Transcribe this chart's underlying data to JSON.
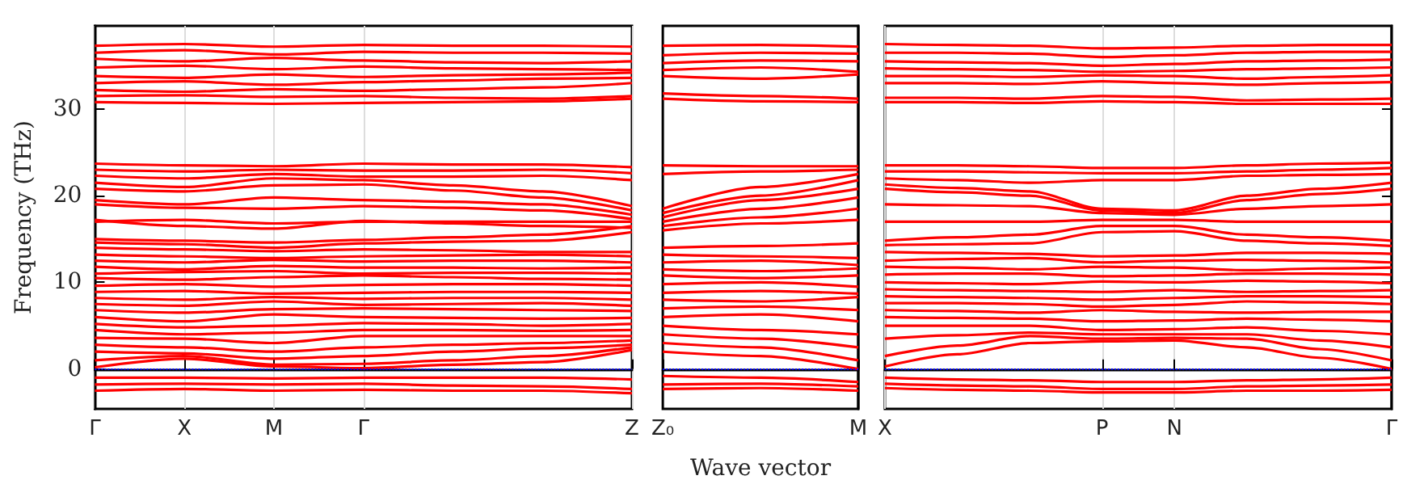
{
  "chart_data": [
    {
      "type": "line",
      "ylabel": "Frequency (THz)",
      "color": "#ff0000",
      "grid": "x",
      "categories": [
        "Γ",
        "X",
        "M",
        "Γ",
        null,
        null,
        "Z"
      ],
      "ylim": [
        -4.6,
        39.6
      ],
      "yticks": [
        0,
        10,
        20,
        30
      ],
      "ref_lines": [
        {
          "axis": "y",
          "value": 0,
          "color": "#0000ff",
          "line_style": "dotted"
        }
      ],
      "series": [
        {
          "values": [
            37.3,
            37.5,
            37.2,
            37.4,
            37.3,
            37.3,
            37.2
          ]
        },
        {
          "values": [
            36.5,
            36.8,
            36.3,
            36.6,
            36.5,
            36.5,
            36.4
          ]
        },
        {
          "values": [
            35.8,
            35.5,
            35.9,
            35.6,
            35.4,
            35.3,
            35.5
          ]
        },
        {
          "values": [
            34.8,
            35.0,
            34.6,
            34.9,
            34.7,
            34.6,
            34.5
          ]
        },
        {
          "values": [
            33.8,
            33.6,
            34.0,
            33.7,
            33.9,
            34.0,
            34.2
          ]
        },
        {
          "values": [
            33.0,
            33.2,
            32.8,
            33.1,
            33.3,
            33.5,
            33.6
          ]
        },
        {
          "values": [
            32.2,
            32.0,
            32.3,
            32.1,
            32.3,
            32.5,
            33.0
          ]
        },
        {
          "values": [
            31.5,
            31.6,
            31.4,
            31.5,
            31.3,
            31.2,
            31.5
          ]
        },
        {
          "values": [
            30.8,
            30.7,
            30.6,
            30.7,
            30.8,
            30.9,
            31.2
          ]
        },
        {
          "values": [
            23.7,
            23.5,
            23.4,
            23.7,
            23.6,
            23.6,
            23.3
          ]
        },
        {
          "values": [
            23.0,
            22.8,
            23.0,
            22.9,
            22.9,
            23.0,
            22.6
          ]
        },
        {
          "values": [
            22.3,
            22.0,
            22.5,
            22.2,
            22.2,
            22.3,
            21.8
          ]
        },
        {
          "values": [
            21.5,
            21.0,
            22.0,
            21.8,
            21.2,
            20.5,
            18.8
          ]
        },
        {
          "values": [
            20.8,
            20.5,
            21.2,
            21.3,
            20.6,
            19.8,
            18.3
          ]
        },
        {
          "values": [
            19.5,
            19.0,
            19.8,
            19.5,
            19.3,
            19.0,
            17.8
          ]
        },
        {
          "values": [
            19.0,
            18.6,
            18.5,
            18.8,
            18.6,
            18.3,
            17.3
          ]
        },
        {
          "values": [
            17.0,
            17.2,
            16.8,
            17.0,
            17.0,
            17.0,
            17.0
          ]
        },
        {
          "values": [
            17.2,
            16.5,
            16.2,
            17.1,
            16.8,
            16.5,
            16.3
          ]
        },
        {
          "values": [
            15.0,
            14.8,
            14.6,
            14.9,
            15.2,
            15.5,
            16.5
          ]
        },
        {
          "values": [
            14.6,
            14.4,
            14.0,
            14.5,
            14.7,
            14.8,
            15.8
          ]
        },
        {
          "values": [
            14.0,
            13.8,
            13.6,
            13.8,
            13.7,
            13.5,
            13.5
          ]
        },
        {
          "values": [
            13.2,
            13.0,
            12.8,
            13.0,
            13.1,
            13.2,
            13.0
          ]
        },
        {
          "values": [
            12.5,
            12.3,
            12.6,
            12.4,
            12.5,
            12.5,
            12.3
          ]
        },
        {
          "values": [
            11.8,
            11.5,
            11.9,
            11.7,
            11.7,
            11.6,
            11.7
          ]
        },
        {
          "values": [
            11.0,
            11.2,
            11.3,
            11.0,
            11.1,
            11.1,
            11.0
          ]
        },
        {
          "values": [
            10.5,
            10.3,
            10.6,
            10.8,
            10.6,
            10.4,
            10.3
          ]
        },
        {
          "values": [
            9.6,
            9.8,
            9.5,
            9.7,
            9.8,
            9.8,
            9.6
          ]
        },
        {
          "values": [
            8.9,
            9.0,
            8.7,
            8.8,
            8.9,
            8.9,
            8.8
          ]
        },
        {
          "values": [
            8.2,
            8.0,
            8.3,
            8.1,
            8.2,
            8.2,
            8.0
          ]
        },
        {
          "values": [
            7.5,
            7.3,
            7.8,
            7.4,
            7.5,
            7.6,
            7.3
          ]
        },
        {
          "values": [
            6.8,
            6.5,
            6.9,
            7.0,
            6.9,
            6.8,
            6.7
          ]
        },
        {
          "values": [
            6.0,
            5.5,
            6.3,
            6.0,
            5.9,
            5.8,
            5.9
          ]
        },
        {
          "values": [
            5.2,
            4.8,
            5.0,
            5.3,
            5.2,
            5.0,
            5.2
          ]
        },
        {
          "values": [
            4.5,
            4.0,
            4.2,
            4.5,
            4.5,
            4.4,
            4.5
          ]
        },
        {
          "values": [
            3.6,
            3.5,
            3.0,
            3.8,
            3.8,
            3.8,
            3.8
          ]
        },
        {
          "values": [
            2.8,
            2.5,
            2.0,
            2.5,
            2.8,
            3.0,
            3.3
          ]
        },
        {
          "values": [
            2.0,
            1.8,
            1.2,
            1.5,
            2.0,
            2.4,
            2.8
          ]
        },
        {
          "values": [
            1.0,
            1.5,
            0.5,
            0.6,
            1.0,
            1.5,
            2.5
          ]
        },
        {
          "values": [
            0.2,
            1.2,
            0.3,
            0.1,
            0.5,
            0.8,
            2.2
          ]
        },
        {
          "values": [
            -1.0,
            -1.0,
            -1.1,
            -1.0,
            -1.0,
            -1.0,
            -1.2
          ]
        },
        {
          "values": [
            -1.8,
            -1.7,
            -1.8,
            -1.7,
            -1.9,
            -2.0,
            -2.3
          ]
        },
        {
          "values": [
            -2.5,
            -2.3,
            -2.5,
            -2.4,
            -2.5,
            -2.5,
            -2.8
          ]
        }
      ]
    },
    {
      "type": "line",
      "xlabel": "Wave vector",
      "color": "#ff0000",
      "tick_labels": "x",
      "categories": [
        "Z₀",
        null,
        "M"
      ],
      "ylim": [
        -4.6,
        39.6
      ],
      "ref_lines": [
        {
          "axis": "y",
          "value": 0,
          "color": "#0000ff",
          "line_style": "dotted"
        }
      ],
      "series": [
        {
          "values": [
            37.3,
            37.4,
            37.2
          ]
        },
        {
          "values": [
            36.2,
            36.5,
            36.4
          ]
        },
        {
          "values": [
            35.3,
            35.6,
            35.5
          ]
        },
        {
          "values": [
            34.5,
            34.8,
            34.3
          ]
        },
        {
          "values": [
            33.8,
            33.5,
            34.0
          ]
        },
        {
          "values": [
            31.8,
            31.5,
            31.2
          ]
        },
        {
          "values": [
            31.2,
            30.9,
            30.8
          ]
        },
        {
          "values": [
            23.5,
            23.4,
            23.4
          ]
        },
        {
          "values": [
            22.5,
            22.8,
            23.0
          ]
        },
        {
          "values": [
            18.5,
            21.0,
            22.5
          ]
        },
        {
          "values": [
            18.0,
            20.0,
            21.8
          ]
        },
        {
          "values": [
            17.5,
            19.5,
            20.8
          ]
        },
        {
          "values": [
            17.0,
            18.5,
            19.8
          ]
        },
        {
          "values": [
            16.5,
            17.5,
            18.5
          ]
        },
        {
          "values": [
            16.0,
            16.8,
            17.2
          ]
        },
        {
          "values": [
            14.0,
            14.2,
            14.5
          ]
        },
        {
          "values": [
            13.2,
            13.0,
            12.8
          ]
        },
        {
          "values": [
            12.3,
            12.5,
            12.0
          ]
        },
        {
          "values": [
            11.5,
            11.3,
            11.6
          ]
        },
        {
          "values": [
            10.8,
            10.5,
            10.8
          ]
        },
        {
          "values": [
            9.8,
            10.0,
            9.5
          ]
        },
        {
          "values": [
            8.8,
            9.0,
            8.7
          ]
        },
        {
          "values": [
            8.0,
            7.8,
            8.3
          ]
        },
        {
          "values": [
            7.0,
            7.2,
            6.8
          ]
        },
        {
          "values": [
            6.0,
            6.3,
            5.5
          ]
        },
        {
          "values": [
            5.0,
            4.5,
            4.0
          ]
        },
        {
          "values": [
            4.0,
            3.5,
            2.5
          ]
        },
        {
          "values": [
            3.0,
            2.5,
            1.0
          ]
        },
        {
          "values": [
            2.0,
            1.5,
            0.0
          ]
        },
        {
          "values": [
            -0.8,
            -1.0,
            -1.5
          ]
        },
        {
          "values": [
            -1.8,
            -1.7,
            -2.0
          ]
        },
        {
          "values": [
            -2.3,
            -2.2,
            -2.5
          ]
        }
      ]
    },
    {
      "type": "line",
      "color": "#ff0000",
      "tick_labels": "x",
      "grid": "x",
      "categories": [
        "X",
        null,
        null,
        "P",
        "N",
        null,
        null,
        "Γ"
      ],
      "ylim": [
        -4.6,
        39.6
      ],
      "yticks": [
        0,
        10,
        20,
        30
      ],
      "ref_lines": [
        {
          "axis": "y",
          "value": 0,
          "color": "#0000ff",
          "line_style": "dotted"
        }
      ],
      "series": [
        {
          "values": [
            37.5,
            37.4,
            37.3,
            37.0,
            37.1,
            37.3,
            37.4,
            37.4
          ]
        },
        {
          "values": [
            36.5,
            36.5,
            36.4,
            36.0,
            36.2,
            36.5,
            36.6,
            36.6
          ]
        },
        {
          "values": [
            35.5,
            35.4,
            35.3,
            35.0,
            35.2,
            35.5,
            35.6,
            35.7
          ]
        },
        {
          "values": [
            34.7,
            34.6,
            34.5,
            34.3,
            34.4,
            34.6,
            34.7,
            34.8
          ]
        },
        {
          "values": [
            33.8,
            33.8,
            33.7,
            33.9,
            33.8,
            33.5,
            33.7,
            33.9
          ]
        },
        {
          "values": [
            33.0,
            33.0,
            32.9,
            33.2,
            33.0,
            32.8,
            33.0,
            33.1
          ]
        },
        {
          "values": [
            31.3,
            31.3,
            31.2,
            31.5,
            31.4,
            31.0,
            31.1,
            31.2
          ]
        },
        {
          "values": [
            30.8,
            30.8,
            30.7,
            30.9,
            30.8,
            30.6,
            30.6,
            30.6
          ]
        },
        {
          "values": [
            23.5,
            23.5,
            23.4,
            23.2,
            23.2,
            23.5,
            23.7,
            23.8
          ]
        },
        {
          "values": [
            22.8,
            22.8,
            22.7,
            22.6,
            22.6,
            22.8,
            23.0,
            23.2
          ]
        },
        {
          "values": [
            22.0,
            21.8,
            21.5,
            21.8,
            21.8,
            22.3,
            22.4,
            22.5
          ]
        },
        {
          "values": [
            21.3,
            20.9,
            20.5,
            18.5,
            18.3,
            20.0,
            20.8,
            21.5
          ]
        },
        {
          "values": [
            20.8,
            20.4,
            20.0,
            18.3,
            18.0,
            19.5,
            20.2,
            20.8
          ]
        },
        {
          "values": [
            19.0,
            18.9,
            18.8,
            18.0,
            17.8,
            18.5,
            18.8,
            19.0
          ]
        },
        {
          "values": [
            17.0,
            17.0,
            17.0,
            17.2,
            17.2,
            17.0,
            17.0,
            17.0
          ]
        },
        {
          "values": [
            14.8,
            15.2,
            15.5,
            16.5,
            16.5,
            15.5,
            15.2,
            14.8
          ]
        },
        {
          "values": [
            14.3,
            14.4,
            14.5,
            15.8,
            15.9,
            14.8,
            14.5,
            14.2
          ]
        },
        {
          "values": [
            13.5,
            13.4,
            13.3,
            13.0,
            13.1,
            13.4,
            13.4,
            13.3
          ]
        },
        {
          "values": [
            12.5,
            12.7,
            12.8,
            12.3,
            12.5,
            12.6,
            12.5,
            12.3
          ]
        },
        {
          "values": [
            11.8,
            11.7,
            11.5,
            11.8,
            11.7,
            11.4,
            11.6,
            11.7
          ]
        },
        {
          "values": [
            10.9,
            11.0,
            11.0,
            10.7,
            10.8,
            11.0,
            11.0,
            10.9
          ]
        },
        {
          "values": [
            10.0,
            9.9,
            9.8,
            10.1,
            10.0,
            10.2,
            10.1,
            9.9
          ]
        },
        {
          "values": [
            9.2,
            9.1,
            9.0,
            8.9,
            9.1,
            8.9,
            9.0,
            9.1
          ]
        },
        {
          "values": [
            8.4,
            8.3,
            8.2,
            8.0,
            8.2,
            8.4,
            8.4,
            8.3
          ]
        },
        {
          "values": [
            7.6,
            7.6,
            7.5,
            7.2,
            7.4,
            7.8,
            7.7,
            7.5
          ]
        },
        {
          "values": [
            6.8,
            6.7,
            6.5,
            6.8,
            6.6,
            6.5,
            6.6,
            6.6
          ]
        },
        {
          "values": [
            6.0,
            5.9,
            5.8,
            5.5,
            5.6,
            5.8,
            5.7,
            5.5
          ]
        },
        {
          "values": [
            5.0,
            5.0,
            5.0,
            4.5,
            4.6,
            4.8,
            4.4,
            4.0
          ]
        },
        {
          "values": [
            3.5,
            3.9,
            4.2,
            4.0,
            4.0,
            4.0,
            3.3,
            2.5
          ]
        },
        {
          "values": [
            1.5,
            2.7,
            3.8,
            3.5,
            3.6,
            3.5,
            2.3,
            1.0
          ]
        },
        {
          "values": [
            0.3,
            1.7,
            3.0,
            3.2,
            3.3,
            2.5,
            1.3,
            0.0
          ]
        },
        {
          "values": [
            -1.0,
            -1.2,
            -1.3,
            -1.5,
            -1.5,
            -1.3,
            -1.2,
            -1.0
          ]
        },
        {
          "values": [
            -1.7,
            -1.9,
            -2.0,
            -2.3,
            -2.3,
            -2.0,
            -1.9,
            -1.8
          ]
        },
        {
          "values": [
            -2.2,
            -2.4,
            -2.5,
            -2.7,
            -2.7,
            -2.5,
            -2.5,
            -2.4
          ]
        }
      ]
    }
  ]
}
